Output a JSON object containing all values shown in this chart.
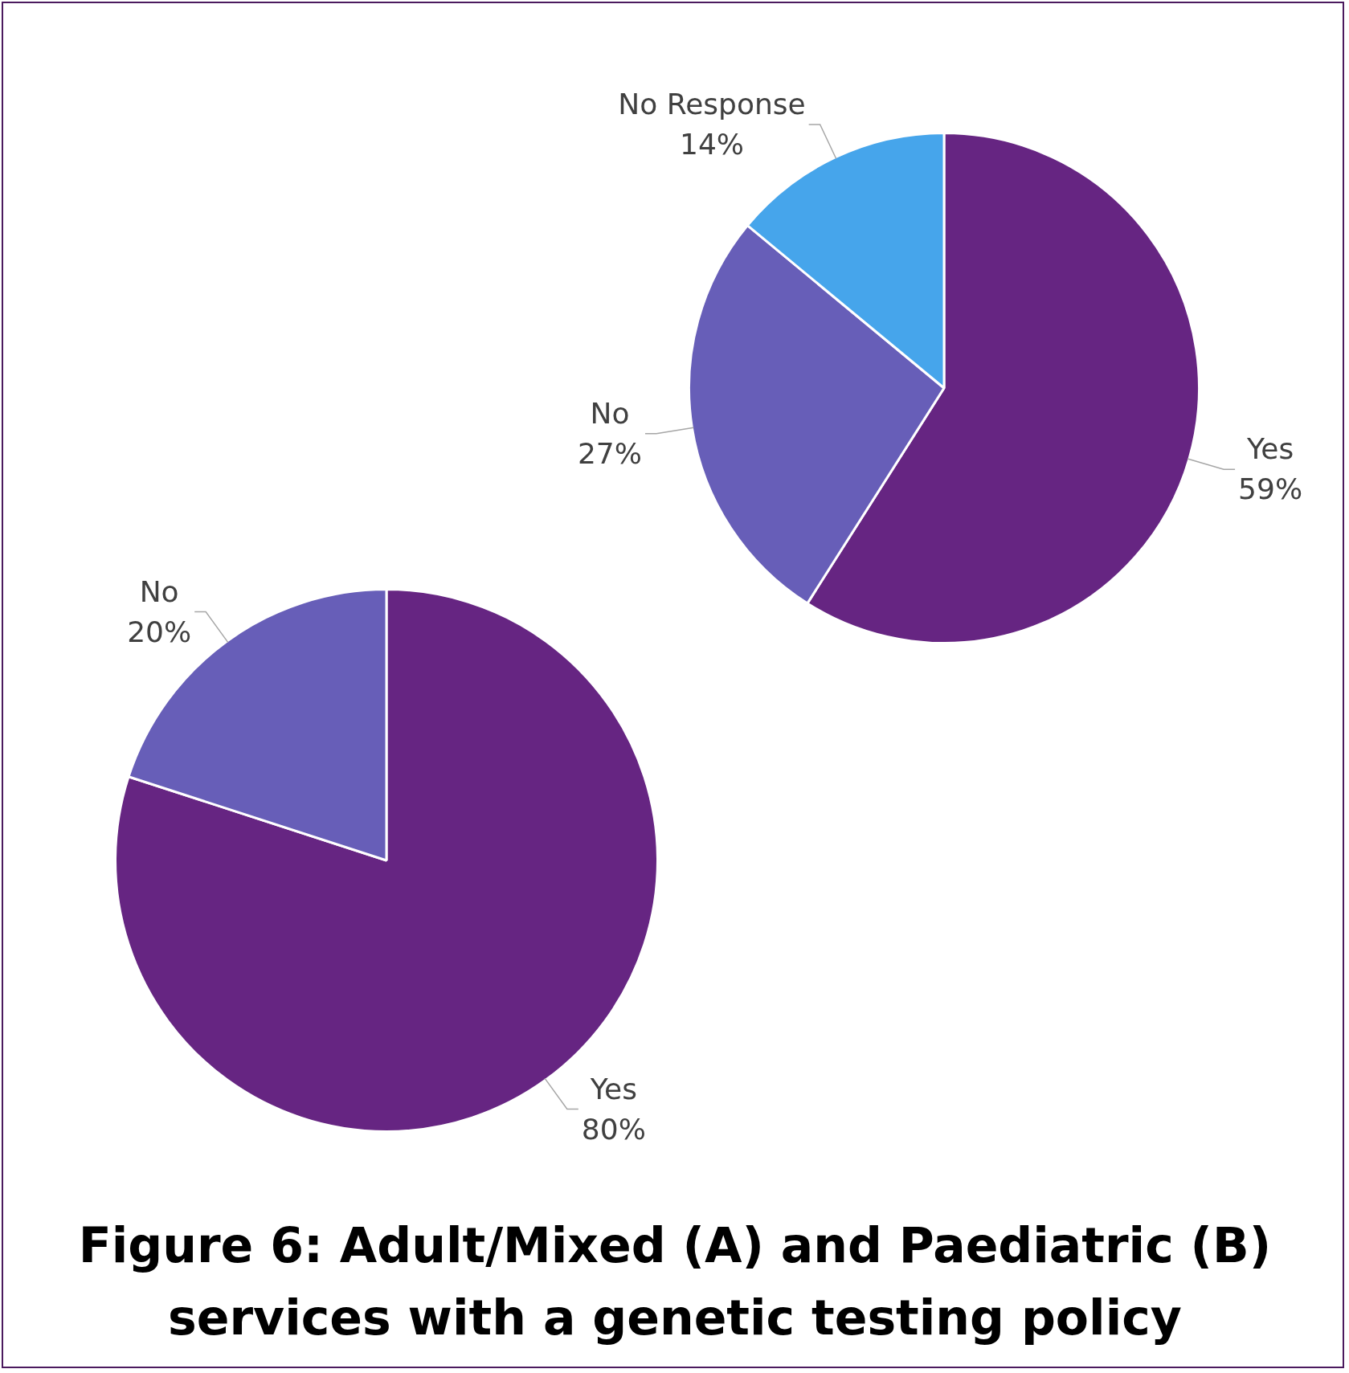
{
  "chart_data": [
    {
      "type": "pie",
      "categories": [
        "Yes",
        "No",
        "No Response"
      ],
      "values": [
        59,
        27,
        14
      ],
      "colors": [
        "#662582",
        "#675eb8",
        "#46a5eb"
      ],
      "value_labels": [
        "59%",
        "27%",
        "14%"
      ],
      "legend": false
    },
    {
      "type": "pie",
      "categories": [
        "Yes",
        "No"
      ],
      "values": [
        80,
        20
      ],
      "colors": [
        "#662582",
        "#675eb8"
      ],
      "value_labels": [
        "80%",
        "20%"
      ],
      "legend": false,
      "title": "Figure 6: Adult/Mixed (A) and Paediatric (B) services with a genetic testing policy"
    }
  ]
}
